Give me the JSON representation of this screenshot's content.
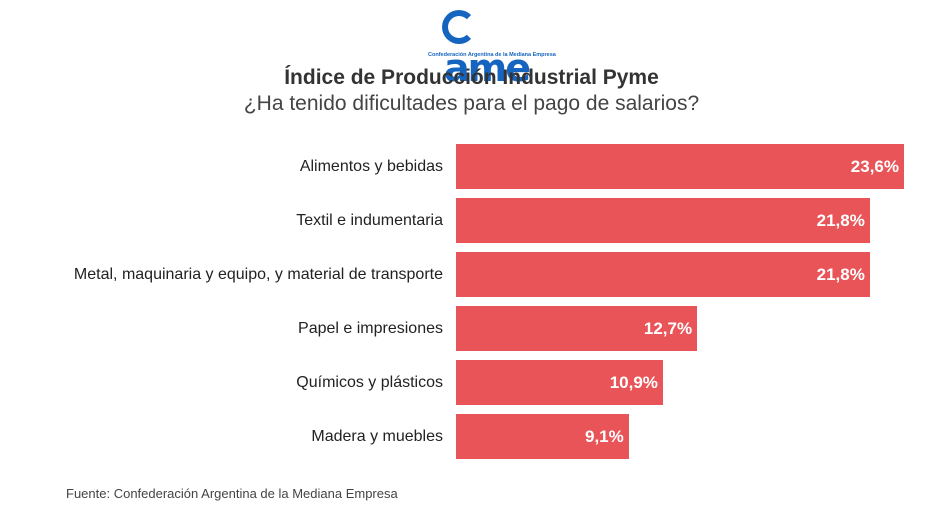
{
  "logo": {
    "mark": "ame",
    "subtitle": "Confederación Argentina de la Mediana Empresa",
    "color": "#1565c0"
  },
  "chart_data": {
    "type": "bar",
    "orientation": "horizontal",
    "title": "Índice de Producción Industrial Pyme",
    "subtitle": "¿Ha tenido dificultades para el pago de salarios?",
    "xlabel": "",
    "ylabel": "",
    "unit": "%",
    "categories": [
      "Alimentos y bebidas",
      "Textil e indumentaria",
      "Metal, maquinaria y equipo, y material de transporte",
      "Papel e impresiones",
      "Químicos y plásticos",
      "Madera y muebles"
    ],
    "values": [
      23.6,
      21.8,
      21.8,
      12.7,
      10.9,
      9.1
    ],
    "value_labels": [
      "23,6%",
      "21,8%",
      "21,8%",
      "12,7%",
      "10,9%",
      "9,1%"
    ],
    "bar_color": "#e85457",
    "grid": false,
    "legend": "none",
    "source": "Fuente: Confederación Argentina de la Mediana Empresa"
  }
}
